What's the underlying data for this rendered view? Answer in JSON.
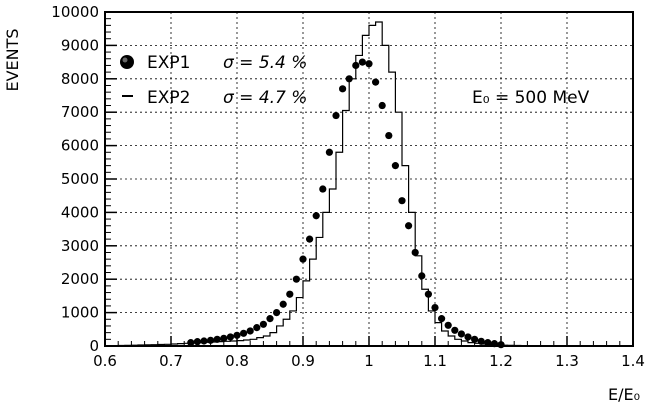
{
  "chart_data": {
    "type": "histogram",
    "xlabel": "E/E₀",
    "ylabel": "EVENTS",
    "xlim": [
      0.6,
      1.4
    ],
    "ylim": [
      0,
      10000
    ],
    "grid": true,
    "x_ticks": [
      "0.6",
      "0.7",
      "0.8",
      "0.9",
      "1",
      "1.1",
      "1.2",
      "1.3",
      "1.4"
    ],
    "y_ticks": [
      "0",
      "1000",
      "2000",
      "3000",
      "4000",
      "5000",
      "6000",
      "7000",
      "8000",
      "9000",
      "10000"
    ],
    "annotation": "E₀ = 500 MeV",
    "legend_position": "top-left",
    "series": [
      {
        "name": "EXP1",
        "sigma_label": "σ = 5.4 %",
        "style": "points",
        "x": [
          0.73,
          0.74,
          0.75,
          0.76,
          0.77,
          0.78,
          0.79,
          0.8,
          0.81,
          0.82,
          0.83,
          0.84,
          0.85,
          0.86,
          0.87,
          0.88,
          0.89,
          0.9,
          0.91,
          0.92,
          0.93,
          0.94,
          0.95,
          0.96,
          0.97,
          0.98,
          0.99,
          1.0,
          1.01,
          1.02,
          1.03,
          1.04,
          1.05,
          1.06,
          1.07,
          1.08,
          1.09,
          1.1,
          1.11,
          1.12,
          1.13,
          1.14,
          1.15,
          1.16,
          1.17,
          1.18,
          1.19,
          1.2
        ],
        "y": [
          100,
          130,
          150,
          170,
          200,
          230,
          270,
          320,
          380,
          450,
          550,
          650,
          820,
          1000,
          1250,
          1550,
          2000,
          2600,
          3200,
          3900,
          4700,
          5800,
          6900,
          7700,
          8000,
          8400,
          8500,
          8450,
          7900,
          7200,
          6300,
          5400,
          4350,
          3600,
          2800,
          2100,
          1550,
          1150,
          820,
          620,
          470,
          360,
          270,
          200,
          140,
          100,
          70,
          40
        ]
      },
      {
        "name": "EXP2",
        "sigma_label": "σ = 4.7 %",
        "style": "step",
        "bin_start": 0.61,
        "bin_width": 0.01,
        "y": [
          10,
          15,
          20,
          25,
          30,
          35,
          40,
          45,
          50,
          60,
          70,
          80,
          90,
          100,
          110,
          120,
          130,
          140,
          150,
          160,
          180,
          200,
          250,
          300,
          400,
          600,
          800,
          1050,
          1450,
          1950,
          2600,
          3250,
          4000,
          4700,
          5800,
          7050,
          8000,
          8700,
          9300,
          9600,
          9700,
          9000,
          8200,
          7000,
          5400,
          4000,
          2700,
          1700,
          1050,
          700,
          450,
          300,
          200,
          150,
          100,
          80,
          60,
          40,
          30,
          25,
          20,
          15,
          10,
          8,
          6,
          5,
          4,
          3,
          2,
          2,
          1,
          1,
          1,
          0,
          0,
          0,
          0,
          0,
          0
        ]
      }
    ]
  }
}
